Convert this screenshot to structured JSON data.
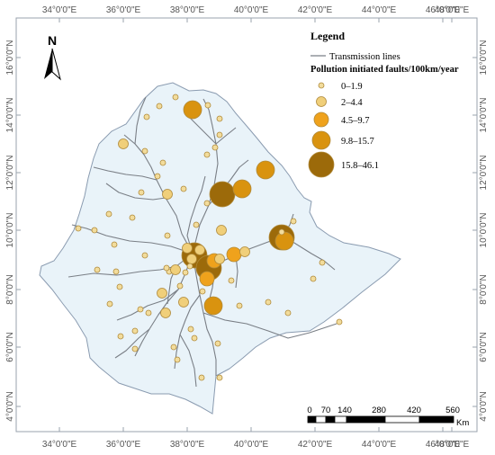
{
  "map": {
    "lon_ticks": [
      "34°0'0\"E",
      "36°0'0\"E",
      "38°0'0\"E",
      "40°0'0\"E",
      "42°0'0\"E",
      "44°0'0\"E",
      "46°0'0\"E",
      "48°0'0\"E"
    ],
    "lat_ticks": [
      "16°0'0\"N",
      "14°0'0\"N",
      "12°0'0\"N",
      "10°0'0\"N",
      "8°0'0\"N",
      "6°0'0\"N",
      "4°0'0\"N"
    ],
    "north_label": "N",
    "colors": {
      "country_fill": "#e9f3f9",
      "country_stroke": "#8a9bb0",
      "line": "#7a7f86",
      "frame": "#9aa3ad"
    }
  },
  "legend": {
    "title": "Legend",
    "line_label": "Transmission lines",
    "subtitle": "Pollution initiated faults/100km/year",
    "classes": [
      {
        "label": "0–1.9",
        "color": "#f2dc9c"
      },
      {
        "label": "2–4.4",
        "color": "#f0cf7a"
      },
      {
        "label": "4.5–9.7",
        "color": "#efa21c"
      },
      {
        "label": "9.8–15.7",
        "color": "#d9930f"
      },
      {
        "label": "15.8–46.1",
        "color": "#9c6a0a"
      }
    ]
  },
  "scale_bar": {
    "ticks": [
      "0",
      "70",
      "140",
      "280",
      "420",
      "560"
    ],
    "unit": "Km"
  }
}
